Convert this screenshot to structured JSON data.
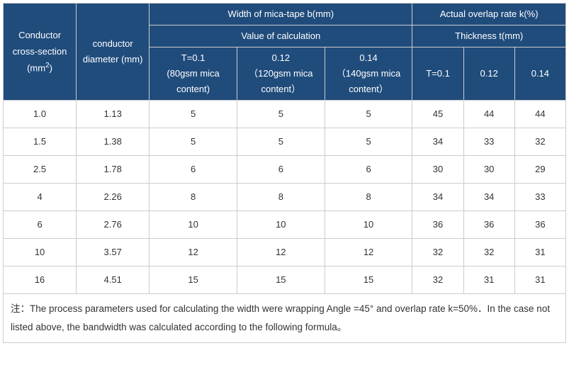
{
  "header": {
    "col1": "Conductor cross-section (mm",
    "col1_sup": "2",
    "col1_tail": ")",
    "col2": "conductor diameter (mm)",
    "group1": "Width of mica-tape b(mm)",
    "group1_sub": "Value of calculation",
    "c3a": "T=0.1",
    "c3b": "(80gsm mica content)",
    "c4a": "0.12",
    "c4b": "（120gsm mica content）",
    "c5a": "0.14",
    "c5b": "（140gsm mica content）",
    "group2": "Actual overlap rate k(%)",
    "group2_sub": "Thickness t(mm)",
    "c6": "T=0.1",
    "c7": "0.12",
    "c8": "0.14"
  },
  "rows": [
    {
      "a": "1.0",
      "b": "1.13",
      "c": "5",
      "d": "5",
      "e": "5",
      "f": "45",
      "g": "44",
      "h": "44"
    },
    {
      "a": "1.5",
      "b": "1.38",
      "c": "5",
      "d": "5",
      "e": "5",
      "f": "34",
      "g": "33",
      "h": "32"
    },
    {
      "a": "2.5",
      "b": "1.78",
      "c": "6",
      "d": "6",
      "e": "6",
      "f": "30",
      "g": "30",
      "h": "29"
    },
    {
      "a": "4",
      "b": "2.26",
      "c": "8",
      "d": "8",
      "e": "8",
      "f": "34",
      "g": "34",
      "h": "33"
    },
    {
      "a": "6",
      "b": "2.76",
      "c": "10",
      "d": "10",
      "e": "10",
      "f": "36",
      "g": "36",
      "h": "36"
    },
    {
      "a": "10",
      "b": "3.57",
      "c": "12",
      "d": "12",
      "e": "12",
      "f": "32",
      "g": "32",
      "h": "31"
    },
    {
      "a": "16",
      "b": "4.51",
      "c": "15",
      "d": "15",
      "e": "15",
      "f": "32",
      "g": "31",
      "h": "31"
    }
  ],
  "note": "注：The process parameters used for calculating the width were wrapping Angle =45° and overlap rate k=50%．In the case not listed above, the bandwidth was calculated according to the following formula。",
  "colors": {
    "header_bg": "#204c7c",
    "header_fg": "#ffffff",
    "border": "#cccccc",
    "cell_bg": "#ffffff",
    "cell_fg": "#333333"
  }
}
